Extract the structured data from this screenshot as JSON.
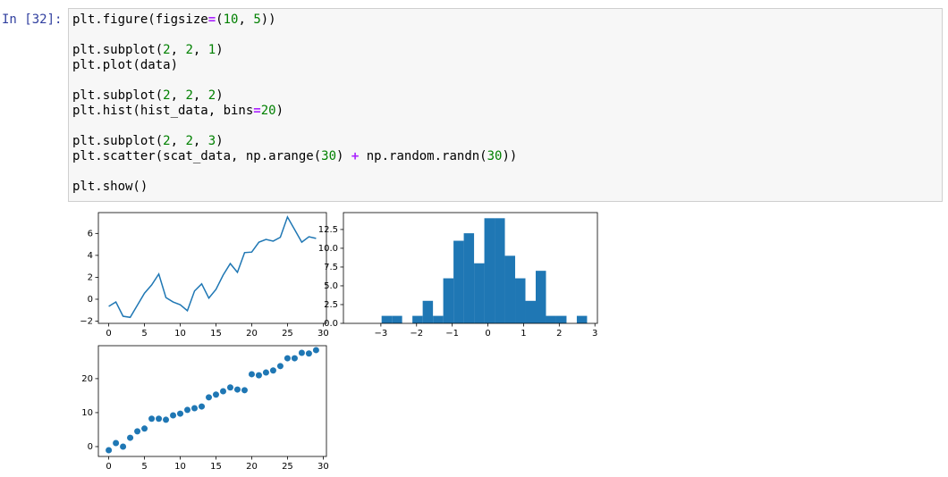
{
  "cell": {
    "prompt": "In [32]:",
    "code": [
      [
        "plt.figure(figsize=(10, 5))"
      ],
      [
        "plt.subplot(2, 2, 1)",
        "plt.plot(data)"
      ],
      [
        "plt.subplot(2, 2, 2)",
        "plt.hist(hist_data, bins=20)"
      ],
      [
        "plt.subplot(2, 2, 3)",
        "plt.scatter(scat_data, np.arange(30) + np.random.randn(30))"
      ],
      [
        "plt.show()"
      ]
    ]
  },
  "chart_data": [
    {
      "type": "line",
      "color": "#1f77b4",
      "x": [
        0,
        1,
        2,
        3,
        4,
        5,
        6,
        7,
        8,
        9,
        10,
        11,
        12,
        13,
        14,
        15,
        16,
        17,
        18,
        19,
        20,
        21,
        22,
        23,
        24,
        25,
        26,
        27,
        28,
        29
      ],
      "values": [
        -0.65,
        -0.25,
        -1.55,
        -1.65,
        -0.55,
        0.55,
        1.3,
        2.3,
        0.15,
        -0.25,
        -0.5,
        -1.05,
        0.75,
        1.4,
        0.1,
        0.9,
        2.2,
        3.25,
        2.45,
        4.25,
        4.3,
        5.2,
        5.45,
        5.3,
        5.65,
        7.5,
        6.35,
        5.2,
        5.7,
        5.55
      ],
      "xlim": [
        -1.45,
        30.45
      ],
      "xticks": [
        0,
        5,
        10,
        15,
        20,
        25,
        30
      ],
      "ylim": [
        -2.2,
        7.9
      ],
      "yticks": [
        {
          "value": -2,
          "label": "−2"
        },
        0,
        2,
        4,
        6
      ]
    },
    {
      "type": "histogram",
      "color": "#1f77b4",
      "bins": [
        -2.98,
        -2.692,
        -2.404,
        -2.116,
        -1.828,
        -1.54,
        -1.252,
        -0.964,
        -0.676,
        -0.388,
        -0.1,
        0.188,
        0.476,
        0.764,
        1.052,
        1.34,
        1.628,
        1.916,
        2.204,
        2.492,
        2.78
      ],
      "values": [
        1,
        1,
        0,
        1,
        3,
        1,
        6,
        11,
        12,
        8,
        14,
        14,
        9,
        6,
        3,
        7,
        1,
        1,
        0,
        1
      ],
      "xlim": [
        -4.05,
        3.07
      ],
      "xticks": [
        {
          "value": -3,
          "label": "−3"
        },
        {
          "value": -2,
          "label": "−2"
        },
        {
          "value": -1,
          "label": "−1"
        },
        0,
        1,
        2,
        3
      ],
      "ylim": [
        0,
        14.75
      ],
      "yticks": [
        {
          "value": 0,
          "label": "0.0"
        },
        {
          "value": 2.5,
          "label": "2.5"
        },
        {
          "value": 5,
          "label": "5.0"
        },
        {
          "value": 7.5,
          "label": "7.5"
        },
        {
          "value": 10,
          "label": "10.0"
        },
        {
          "value": 12.5,
          "label": "12.5"
        }
      ]
    },
    {
      "type": "scatter",
      "color": "#1f77b4",
      "x": [
        0,
        1,
        2,
        3,
        4,
        5,
        6,
        7,
        8,
        9,
        10,
        11,
        12,
        13,
        14,
        15,
        16,
        17,
        18,
        19,
        20,
        21,
        22,
        23,
        24,
        25,
        26,
        27,
        28,
        29
      ],
      "values": [
        -1.05,
        1.05,
        0,
        2.6,
        4.5,
        5.3,
        8.2,
        8.2,
        7.9,
        9.2,
        9.7,
        10.8,
        11.3,
        11.8,
        14.5,
        15.3,
        16.3,
        17.4,
        16.8,
        16.6,
        21.3,
        21.0,
        21.8,
        22.4,
        23.7,
        26,
        26,
        27.6,
        27.4,
        28.4
      ],
      "xlim": [
        -1.45,
        30.45
      ],
      "xticks": [
        0,
        5,
        10,
        15,
        20,
        25,
        30
      ],
      "ylim": [
        -2.9,
        29.7
      ],
      "yticks": [
        0,
        10,
        20
      ]
    }
  ]
}
